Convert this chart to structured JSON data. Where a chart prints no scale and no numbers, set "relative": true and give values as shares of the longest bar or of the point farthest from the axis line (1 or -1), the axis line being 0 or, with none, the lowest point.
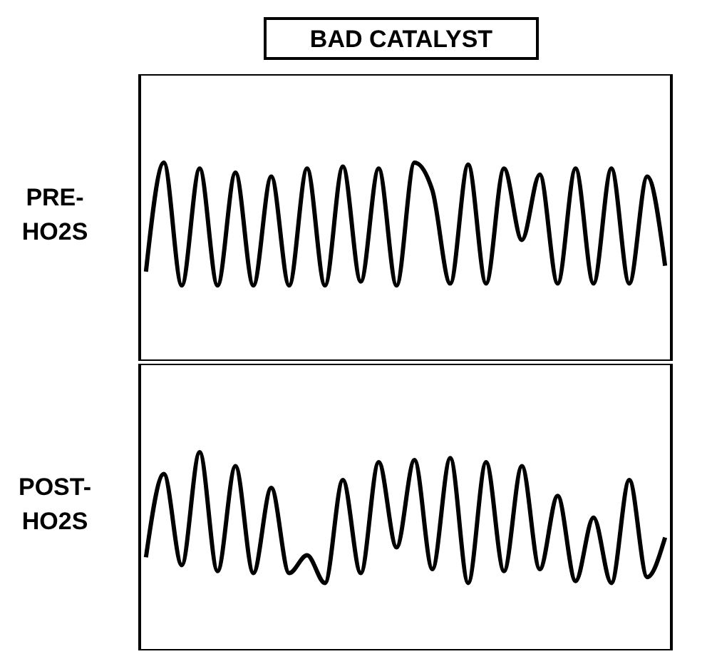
{
  "chart_data": [
    {
      "type": "line",
      "title": "BAD CATALYST",
      "ylabel": "PRE-\nHO2S",
      "relative": true,
      "categories": [
        null,
        null,
        null,
        null,
        null,
        null,
        null,
        null,
        null,
        null,
        null,
        null,
        null,
        null,
        null,
        null,
        null,
        null,
        null,
        null,
        null,
        null,
        null,
        null,
        null,
        null,
        null,
        null,
        null,
        null
      ],
      "series": [
        {
          "color": "#000000",
          "values": [
            0.45,
            1,
            0.38,
            0.97,
            0.38,
            0.95,
            0.38,
            0.93,
            0.38,
            0.97,
            0.38,
            0.98,
            0.4,
            0.97,
            0.38,
            1,
            0.86,
            0.39,
            0.99,
            0.39,
            0.97,
            0.61,
            0.94,
            0.39,
            0.97,
            0.39,
            0.97,
            0.39,
            0.93,
            0.48
          ]
        }
      ]
    },
    {
      "type": "line",
      "ylabel": "POST-\nHO2S",
      "relative": true,
      "categories": [
        null,
        null,
        null,
        null,
        null,
        null,
        null,
        null,
        null,
        null,
        null,
        null,
        null,
        null,
        null,
        null,
        null,
        null,
        null,
        null,
        null,
        null,
        null,
        null,
        null,
        null,
        null,
        null,
        null,
        null
      ],
      "series": [
        {
          "color": "#000000",
          "values": [
            0.47,
            0.89,
            0.43,
            1,
            0.4,
            0.93,
            0.39,
            0.82,
            0.39,
            0.48,
            0.34,
            0.86,
            0.39,
            0.95,
            0.52,
            0.96,
            0.41,
            0.97,
            0.34,
            0.95,
            0.4,
            0.93,
            0.41,
            0.78,
            0.35,
            0.67,
            0.34,
            0.86,
            0.37,
            0.57
          ]
        }
      ]
    }
  ]
}
